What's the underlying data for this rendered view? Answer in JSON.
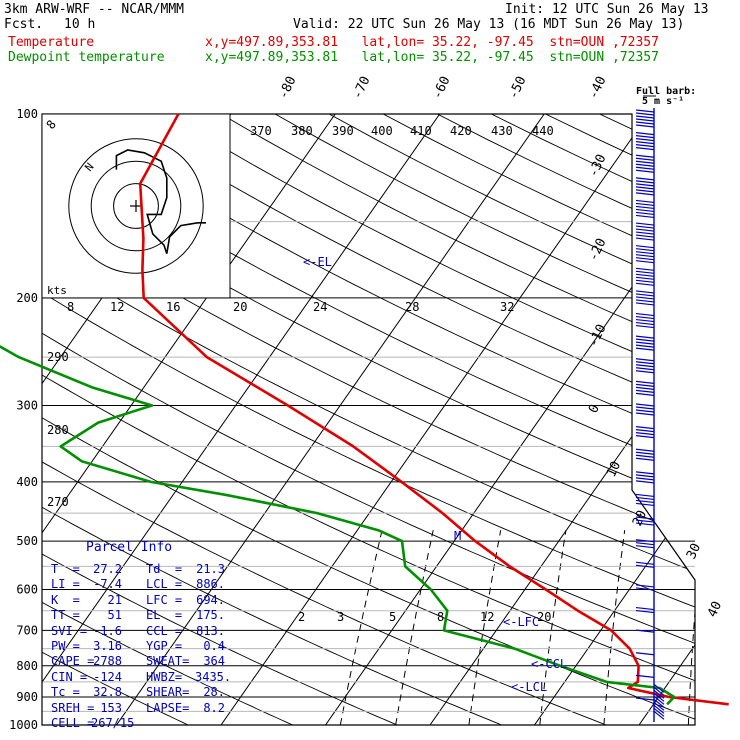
{
  "header": {
    "model": "3km ARW-WRF -- NCAR/MMM",
    "init": "Init: 12 UTC Sun 26 May 13",
    "fcst_label": "Fcst.",
    "fcst_hours": "10 h",
    "valid": "Valid: 22 UTC Sun 26 May 13 (16 MDT Sun 26 May 13)",
    "temp_label": "Temperature",
    "dew_label": "Dewpoint temperature",
    "temp_loc": "x,y=497.89,353.81   lat,lon= 35.22, -97.45  stn=OUN ,72357",
    "dew_loc": "x,y=497.89,353.81   lat,lon= 35.22, -97.45  stn=OUN ,72357"
  },
  "colors": {
    "temperature": "#e00000",
    "dewpoint": "#009000",
    "parcel": "#0000c0",
    "isobar": "#000000"
  },
  "chart_data": {
    "type": "line",
    "title": "Skew-T log-P sounding",
    "ylabel": "",
    "pressure_ticks": [
      "100",
      "200",
      "300",
      "400",
      "500",
      "600",
      "700",
      "800",
      "900",
      "1000"
    ],
    "temperature_ticks": [
      "-80",
      "-70",
      "-60",
      "-50",
      "-40",
      "-30",
      "-20",
      "-10",
      "0",
      "10",
      "20",
      "30",
      "40"
    ],
    "theta_ticks": [
      "370",
      "380",
      "390",
      "400",
      "410",
      "420",
      "430",
      "440",
      "290",
      "280",
      "270"
    ],
    "mixing_ratio_ticks": [
      "2",
      "3",
      "5",
      "8",
      "12",
      "20"
    ],
    "wind_speed_ticks": [
      "8",
      "12",
      "16",
      "20",
      "24",
      "28",
      "32"
    ],
    "wind_speed_unit": "kts",
    "barb_legend": [
      "Full barb:",
      "5 m s⁻¹"
    ],
    "series": [
      {
        "name": "Temperature",
        "pressure": [
          100,
          130,
          160,
          180,
          200,
          250,
          300,
          350,
          400,
          450,
          500,
          550,
          600,
          650,
          700,
          750,
          800,
          850,
          870,
          900,
          925
        ],
        "temp_c": [
          -65,
          -64,
          -60,
          -58,
          -56,
          -46,
          -35,
          -26,
          -19,
          -13,
          -8,
          -3,
          2,
          6.5,
          11,
          14,
          16,
          17,
          16.5,
          21,
          27.2
        ]
      },
      {
        "name": "Dewpoint temperature",
        "pressure": [
          100,
          130,
          160,
          200,
          220,
          250,
          280,
          300,
          320,
          350,
          370,
          400,
          420,
          450,
          480,
          500,
          550,
          600,
          650,
          700,
          750,
          800,
          850,
          870,
          900,
          925
        ],
        "temp_c": [
          -85,
          -82,
          -79,
          -74,
          -72,
          -64,
          -55,
          -48,
          -52,
          -54,
          -51,
          -43,
          -35,
          -25,
          -18,
          -15,
          -13,
          -9,
          -6,
          -5,
          3,
          8.5,
          14,
          19.5,
          21.5,
          21.3
        ]
      }
    ],
    "annotations": [
      "<-EL",
      "<-LFC",
      "<-CCL",
      "<-LCL",
      "M"
    ],
    "hodograph": {
      "ring_labels": [
        "8",
        "N"
      ],
      "points": [
        [
          -7,
          13
        ],
        [
          -7,
          18
        ],
        [
          -3,
          20
        ],
        [
          3,
          19
        ],
        [
          9,
          16
        ],
        [
          11,
          10
        ],
        [
          11,
          3
        ],
        [
          9,
          -3
        ],
        [
          4,
          -3
        ],
        [
          6,
          -10
        ],
        [
          10,
          -14
        ],
        [
          11,
          -17
        ],
        [
          12,
          -11
        ],
        [
          16,
          -7
        ],
        [
          22,
          -6
        ],
        [
          25,
          -6
        ]
      ]
    },
    "wind_barbs_ms": [
      35,
      35,
      34,
      33,
      32,
      31,
      30,
      30,
      29,
      28,
      27,
      26,
      25,
      24,
      23,
      22,
      21,
      20,
      18,
      16,
      14,
      12,
      10,
      8,
      7,
      6,
      5
    ]
  },
  "parcel": {
    "title": "Parcel Info",
    "rows": [
      [
        "T  =",
        "27.2",
        "Td  =",
        "21.3"
      ],
      [
        "LI =",
        "-7.4",
        "LCL =",
        "886."
      ],
      [
        "K  =",
        "21",
        "LFC =",
        "694."
      ],
      [
        "TT =",
        "51",
        "EL  =",
        "175."
      ],
      [
        "SVI =",
        "-1.6",
        "CCL =",
        "813."
      ],
      [
        "PW =",
        "3.16",
        "YGP =",
        "0.4"
      ],
      [
        "CAPE =",
        "2788",
        "SWEAT=",
        "364"
      ],
      [
        "CIN =",
        "-124",
        "HWBZ=",
        "3435."
      ],
      [
        "Tc =",
        "32.8",
        "SHEAR=",
        "28."
      ],
      [
        "SREH =",
        "153",
        "LAPSE=",
        "8.2"
      ],
      [
        "CELL =",
        "267/15",
        "",
        ""
      ]
    ]
  }
}
